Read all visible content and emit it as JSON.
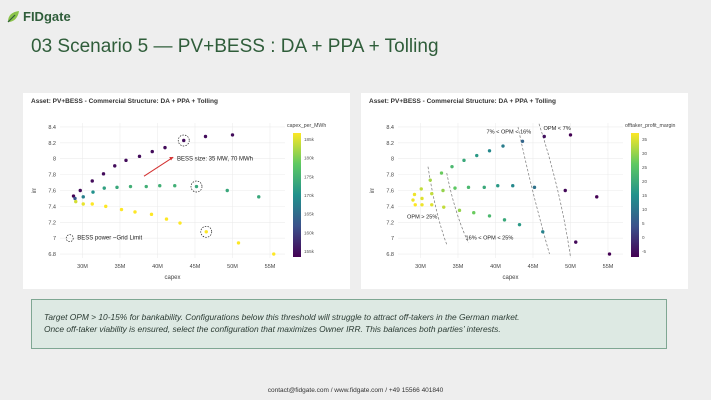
{
  "brand": {
    "name": "FIDgate",
    "accent": "#2f5d3a",
    "icon": "leaf-icon"
  },
  "slide": {
    "title": "03 Scenario 5 — PV+BESS : DA + PPA + Tolling"
  },
  "charts": {
    "left": {
      "title": "Asset: PV+BESS - Commercial Structure: DA + PPA + Tolling",
      "colorbar_label": "capex_per_MWh",
      "colorbar_ticks": [
        "185k",
        "180k",
        "175k",
        "170k",
        "165k",
        "160k",
        "155k"
      ],
      "annotations": {
        "bess_size": "BESS size: 35 MW, 70 MWh",
        "grid_limit": "BESS power ~Grid Limit"
      }
    },
    "right": {
      "title": "Asset: PV+BESS - Commercial Structure: DA + PPA + Tolling",
      "colorbar_label": "offtaker_profit_margin",
      "colorbar_ticks": [
        "35",
        "30",
        "25",
        "20",
        "15",
        "10",
        "5",
        "0",
        "-5"
      ],
      "zones": [
        "OPM < 7%",
        "7% < OPM < 16%",
        "OPM > 25%",
        "16% < OPM < 25%"
      ]
    }
  },
  "chart_data": [
    {
      "type": "scatter",
      "title": "Asset: PV+BESS - Commercial Structure: DA + PPA + Tolling",
      "xlabel": "capex",
      "ylabel": "irr",
      "xlim": [
        27,
        57
      ],
      "ylim": [
        6.75,
        8.45
      ],
      "xticks": [
        "30M",
        "35M",
        "40M",
        "45M",
        "50M",
        "55M"
      ],
      "yticks": [
        "6.8",
        "7",
        "7.2",
        "7.4",
        "7.6",
        "7.8",
        "8",
        "8.2",
        "8.4"
      ],
      "color_scale": "capex_per_MWh",
      "points": [
        {
          "x": 28.8,
          "y": 7.53,
          "c": 155
        },
        {
          "x": 29.0,
          "y": 7.5,
          "c": 163
        },
        {
          "x": 29.1,
          "y": 7.46,
          "c": 183
        },
        {
          "x": 29.7,
          "y": 7.6,
          "c": 156
        },
        {
          "x": 30.1,
          "y": 7.52,
          "c": 168
        },
        {
          "x": 30.1,
          "y": 7.43,
          "c": 184
        },
        {
          "x": 31.3,
          "y": 7.72,
          "c": 156
        },
        {
          "x": 31.4,
          "y": 7.58,
          "c": 170
        },
        {
          "x": 31.3,
          "y": 7.43,
          "c": 185
        },
        {
          "x": 32.8,
          "y": 7.81,
          "c": 156
        },
        {
          "x": 32.9,
          "y": 7.63,
          "c": 172
        },
        {
          "x": 33.1,
          "y": 7.4,
          "c": 185
        },
        {
          "x": 34.3,
          "y": 7.91,
          "c": 156
        },
        {
          "x": 34.6,
          "y": 7.64,
          "c": 173
        },
        {
          "x": 35.2,
          "y": 7.36,
          "c": 185
        },
        {
          "x": 35.8,
          "y": 7.98,
          "c": 156
        },
        {
          "x": 36.4,
          "y": 7.65,
          "c": 174
        },
        {
          "x": 37.0,
          "y": 7.33,
          "c": 185
        },
        {
          "x": 37.6,
          "y": 8.03,
          "c": 156
        },
        {
          "x": 38.5,
          "y": 7.65,
          "c": 174
        },
        {
          "x": 39.2,
          "y": 7.3,
          "c": 185
        },
        {
          "x": 39.3,
          "y": 8.09,
          "c": 156
        },
        {
          "x": 40.3,
          "y": 7.66,
          "c": 174
        },
        {
          "x": 41.2,
          "y": 7.24,
          "c": 185
        },
        {
          "x": 41.0,
          "y": 8.14,
          "c": 156
        },
        {
          "x": 42.3,
          "y": 7.66,
          "c": 174
        },
        {
          "x": 43.0,
          "y": 7.19,
          "c": 185
        },
        {
          "x": 43.5,
          "y": 8.23,
          "c": 156
        },
        {
          "x": 45.2,
          "y": 7.65,
          "c": 173
        },
        {
          "x": 46.5,
          "y": 7.08,
          "c": 185
        },
        {
          "x": 46.4,
          "y": 8.28,
          "c": 156
        },
        {
          "x": 49.3,
          "y": 7.6,
          "c": 173
        },
        {
          "x": 50.8,
          "y": 6.94,
          "c": 185
        },
        {
          "x": 50.0,
          "y": 8.3,
          "c": 156
        },
        {
          "x": 53.5,
          "y": 7.52,
          "c": 173
        },
        {
          "x": 55.5,
          "y": 6.8,
          "c": 185
        }
      ]
    },
    {
      "type": "scatter",
      "title": "Asset: PV+BESS - Commercial Structure: DA + PPA + Tolling",
      "xlabel": "capex",
      "ylabel": "irr",
      "xlim": [
        27,
        57
      ],
      "ylim": [
        6.75,
        8.45
      ],
      "xticks": [
        "30M",
        "35M",
        "40M",
        "45M",
        "50M",
        "55M"
      ],
      "yticks": [
        "6.8",
        "7",
        "7.2",
        "7.4",
        "7.6",
        "7.8",
        "8",
        "8.2",
        "8.4"
      ],
      "color_scale": "offtaker_profit_margin",
      "points": [
        {
          "x": 29.0,
          "y": 7.48,
          "c": 36
        },
        {
          "x": 29.2,
          "y": 7.55,
          "c": 36
        },
        {
          "x": 29.3,
          "y": 7.42,
          "c": 37
        },
        {
          "x": 30.1,
          "y": 7.62,
          "c": 33
        },
        {
          "x": 30.2,
          "y": 7.5,
          "c": 35
        },
        {
          "x": 30.2,
          "y": 7.42,
          "c": 36
        },
        {
          "x": 31.3,
          "y": 7.73,
          "c": 31
        },
        {
          "x": 31.5,
          "y": 7.56,
          "c": 33
        },
        {
          "x": 31.5,
          "y": 7.42,
          "c": 35
        },
        {
          "x": 32.8,
          "y": 7.82,
          "c": 27
        },
        {
          "x": 33.0,
          "y": 7.6,
          "c": 30
        },
        {
          "x": 33.1,
          "y": 7.39,
          "c": 33
        },
        {
          "x": 34.2,
          "y": 7.9,
          "c": 23
        },
        {
          "x": 34.6,
          "y": 7.63,
          "c": 26
        },
        {
          "x": 35.2,
          "y": 7.35,
          "c": 30
        },
        {
          "x": 35.8,
          "y": 7.98,
          "c": 20
        },
        {
          "x": 36.4,
          "y": 7.64,
          "c": 23
        },
        {
          "x": 37.1,
          "y": 7.32,
          "c": 27
        },
        {
          "x": 37.5,
          "y": 8.04,
          "c": 17
        },
        {
          "x": 38.5,
          "y": 7.64,
          "c": 20
        },
        {
          "x": 39.2,
          "y": 7.28,
          "c": 23
        },
        {
          "x": 39.2,
          "y": 8.1,
          "c": 14
        },
        {
          "x": 40.3,
          "y": 7.66,
          "c": 17
        },
        {
          "x": 41.2,
          "y": 7.23,
          "c": 20
        },
        {
          "x": 41.0,
          "y": 8.16,
          "c": 12
        },
        {
          "x": 42.3,
          "y": 7.66,
          "c": 14
        },
        {
          "x": 43.2,
          "y": 7.17,
          "c": 17
        },
        {
          "x": 43.6,
          "y": 8.22,
          "c": 8
        },
        {
          "x": 45.2,
          "y": 7.64,
          "c": 10
        },
        {
          "x": 46.3,
          "y": 7.08,
          "c": 13
        },
        {
          "x": 46.5,
          "y": 8.28,
          "c": -4
        },
        {
          "x": 49.3,
          "y": 7.6,
          "c": -5
        },
        {
          "x": 50.7,
          "y": 6.95,
          "c": -5
        },
        {
          "x": 50.0,
          "y": 8.3,
          "c": -6
        },
        {
          "x": 53.5,
          "y": 7.52,
          "c": -6
        },
        {
          "x": 55.2,
          "y": 6.8,
          "c": -6
        }
      ]
    }
  ],
  "note": {
    "line1": "Target OPM > 10-15% for bankability. Configurations below this threshold will struggle to attract off-takers in the German market.",
    "line2": "Once off-taker viability is ensured, select the configuration that maximizes Owner IRR. This balances both parties’ interests."
  },
  "footer": {
    "text": "contact@fidgate.com / www.fidgate.com / +49 15566 401840"
  }
}
